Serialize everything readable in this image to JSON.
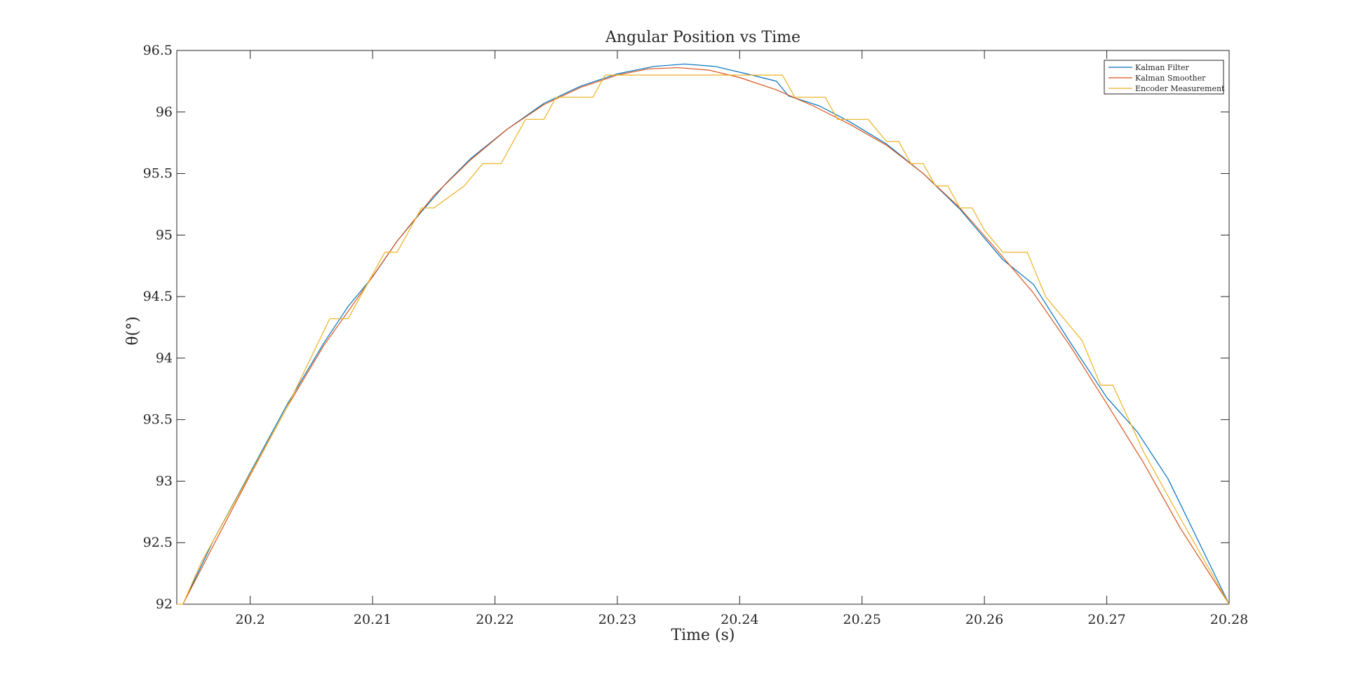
{
  "chart_data": {
    "type": "line",
    "title": "Angular Position vs Time",
    "xlabel": "Time (s)",
    "ylabel": "θ(°)",
    "xlim": [
      20.194,
      20.28
    ],
    "ylim": [
      92,
      96.5
    ],
    "xticks": [
      "20.2",
      "20.21",
      "20.22",
      "20.23",
      "20.24",
      "20.25",
      "20.26",
      "20.27",
      "20.28"
    ],
    "yticks": [
      "92",
      "92.5",
      "93",
      "93.5",
      "94",
      "94.5",
      "95",
      "95.5",
      "96",
      "96.5"
    ],
    "grid": false,
    "legend_position": "top-right",
    "colors": {
      "kalman_filter": "#0072BD",
      "kalman_smoother": "#D95319",
      "encoder": "#EDB120"
    },
    "series": [
      {
        "name": "Kalman Filter",
        "x": [
          20.1945,
          20.197,
          20.2,
          20.203,
          20.206,
          20.208,
          20.21,
          20.212,
          20.214,
          20.216,
          20.218,
          20.221,
          20.224,
          20.227,
          20.23,
          20.233,
          20.2355,
          20.238,
          20.241,
          20.243,
          20.244,
          20.2465,
          20.249,
          20.252,
          20.255,
          20.258,
          20.2615,
          20.264,
          20.267,
          20.27,
          20.2725,
          20.275,
          20.28
        ],
        "y": [
          92.0,
          92.52,
          93.07,
          93.62,
          94.12,
          94.42,
          94.66,
          94.95,
          95.19,
          95.42,
          95.62,
          95.86,
          96.07,
          96.21,
          96.31,
          96.37,
          96.39,
          96.37,
          96.3,
          96.25,
          96.13,
          96.05,
          95.92,
          95.74,
          95.5,
          95.21,
          94.8,
          94.6,
          94.13,
          93.68,
          93.4,
          93.02,
          92.0
        ]
      },
      {
        "name": "Kalman Smoother",
        "x": [
          20.1945,
          20.197,
          20.2,
          20.203,
          20.206,
          20.209,
          20.212,
          20.215,
          20.218,
          20.221,
          20.224,
          20.227,
          20.23,
          20.2325,
          20.235,
          20.2375,
          20.24,
          20.243,
          20.246,
          20.249,
          20.252,
          20.255,
          20.258,
          20.261,
          20.264,
          20.267,
          20.27,
          20.273,
          20.276,
          20.28
        ],
        "y": [
          92.0,
          92.48,
          93.05,
          93.6,
          94.1,
          94.52,
          94.95,
          95.32,
          95.61,
          95.86,
          96.06,
          96.2,
          96.3,
          96.35,
          96.36,
          96.34,
          96.28,
          96.18,
          96.05,
          95.9,
          95.73,
          95.5,
          95.22,
          94.88,
          94.53,
          94.1,
          93.63,
          93.15,
          92.62,
          92.0
        ]
      },
      {
        "name": "Encoder Measurement",
        "x": [
          20.194,
          20.1945,
          20.196,
          20.2,
          20.203,
          20.2065,
          20.208,
          20.211,
          20.212,
          20.214,
          20.215,
          20.2175,
          20.219,
          20.2205,
          20.2215,
          20.2225,
          20.224,
          20.225,
          20.228,
          20.229,
          20.2325,
          20.2395,
          20.243,
          20.2435,
          20.2445,
          20.247,
          20.248,
          20.2495,
          20.2505,
          20.252,
          20.253,
          20.254,
          20.255,
          20.256,
          20.257,
          20.258,
          20.259,
          20.26,
          20.2615,
          20.2635,
          20.265,
          20.268,
          20.2695,
          20.2705,
          20.273,
          20.276,
          20.28
        ],
        "y": [
          92.0,
          92.0,
          92.34,
          93.06,
          93.6,
          94.32,
          94.32,
          94.86,
          94.86,
          95.22,
          95.22,
          95.4,
          95.58,
          95.58,
          95.76,
          95.94,
          95.94,
          96.12,
          96.12,
          96.3,
          96.3,
          96.3,
          96.3,
          96.3,
          96.12,
          96.12,
          95.94,
          95.94,
          95.94,
          95.76,
          95.76,
          95.58,
          95.58,
          95.4,
          95.4,
          95.22,
          95.22,
          95.04,
          94.86,
          94.86,
          94.5,
          94.14,
          93.78,
          93.78,
          93.24,
          92.7,
          92.0
        ]
      }
    ]
  }
}
